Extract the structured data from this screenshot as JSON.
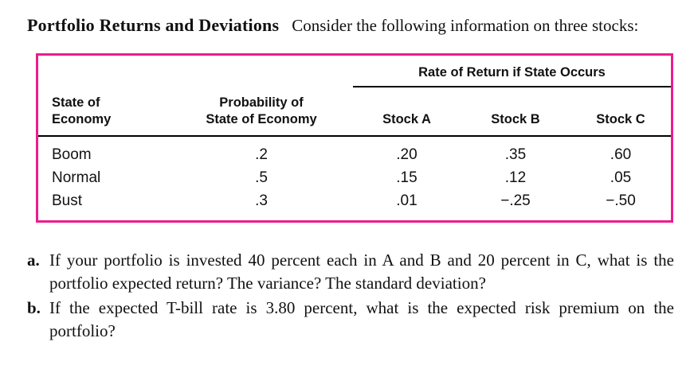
{
  "colors": {
    "table_border": "#ec1c8e"
  },
  "intro": {
    "title": "Portfolio Returns and Deviations",
    "text": "Consider the following information on three stocks:"
  },
  "table": {
    "span_header": "Rate of Return if State Occurs",
    "col_state_line1": "State of",
    "col_state_line2": "Economy",
    "col_prob_line1": "Probability of",
    "col_prob_line2": "State of Economy",
    "stock_headers": [
      "Stock A",
      "Stock B",
      "Stock C"
    ],
    "rows": [
      {
        "state": "Boom",
        "prob": ".2",
        "a": ".20",
        "b": ".35",
        "c": ".60"
      },
      {
        "state": "Normal",
        "prob": ".5",
        "a": ".15",
        "b": ".12",
        "c": ".05"
      },
      {
        "state": "Bust",
        "prob": ".3",
        "a": ".01",
        "b": "−.25",
        "c": "−.50"
      }
    ]
  },
  "questions": [
    {
      "label": "a.",
      "text": "If your portfolio is invested 40 percent each in A and B and 20 percent in C, what is the portfolio expected return? The variance? The standard deviation?"
    },
    {
      "label": "b.",
      "text": "If the expected T-bill rate is 3.80 percent, what is the expected risk premium on the portfolio?"
    }
  ]
}
